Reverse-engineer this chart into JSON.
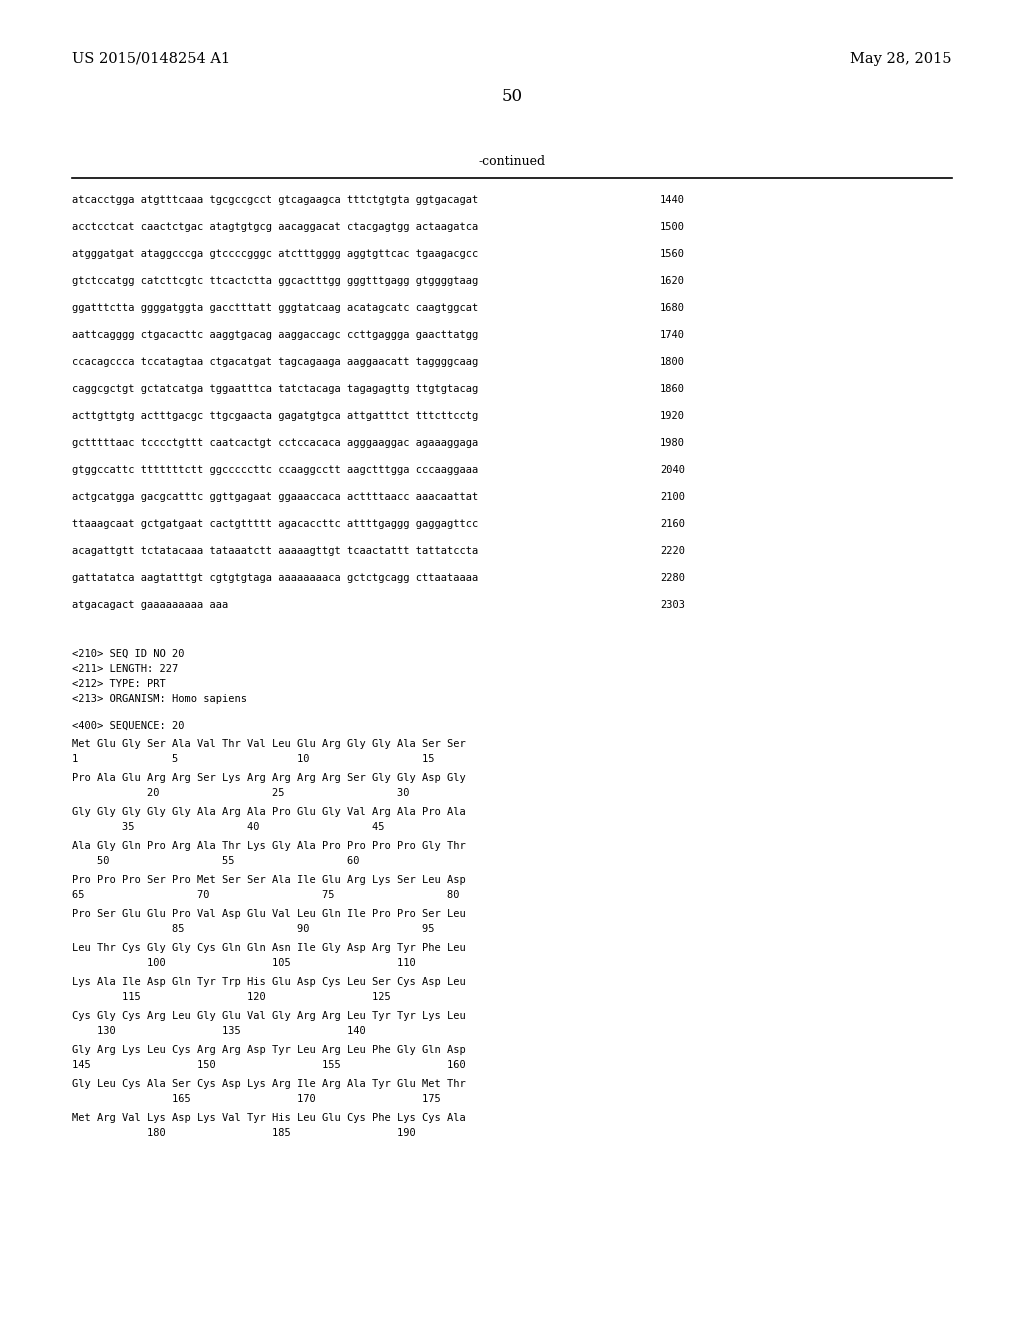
{
  "patent_left": "US 2015/0148254 A1",
  "patent_right": "May 28, 2015",
  "page_number": "50",
  "continued_label": "-continued",
  "background_color": "#ffffff",
  "text_color": "#000000",
  "sequence_lines": [
    [
      "atcacctgga atgtttcaaa tgcgccgcct gtcagaagca tttctgtgta ggtgacagat",
      "1440"
    ],
    [
      "acctcctcat caactctgac atagtgtgcg aacaggacat ctacgagtgg actaagatca",
      "1500"
    ],
    [
      "atgggatgat ataggcccga gtccccgggc atctttgggg aggtgttcac tgaagacgcc",
      "1560"
    ],
    [
      "gtctccatgg catcttcgtc ttcactctta ggcactttgg gggtttgagg gtggggtaag",
      "1620"
    ],
    [
      "ggatttctta ggggatggta gacctttatt gggtatcaag acatagcatc caagtggcat",
      "1680"
    ],
    [
      "aattcagggg ctgacacttc aaggtgacag aaggaccagc ccttgaggga gaacttatgg",
      "1740"
    ],
    [
      "ccacagccca tccatagtaa ctgacatgat tagcagaaga aaggaacatt taggggcaag",
      "1800"
    ],
    [
      "caggcgctgt gctatcatga tggaatttca tatctacaga tagagagttg ttgtgtacag",
      "1860"
    ],
    [
      "acttgttgtg actttgacgc ttgcgaacta gagatgtgca attgatttct tttcttcctg",
      "1920"
    ],
    [
      "gctttttaac tcccctgttt caatcactgt cctccacaca agggaaggac agaaaggaga",
      "1980"
    ],
    [
      "gtggccattc tttttttctt ggcccccttc ccaaggcctt aagctttgga cccaaggaaa",
      "2040"
    ],
    [
      "actgcatgga gacgcatttc ggttgagaat ggaaaccaca acttttaacc aaacaattat",
      "2100"
    ],
    [
      "ttaaagcaat gctgatgaat cactgttttt agacaccttc attttgaggg gaggagttcc",
      "2160"
    ],
    [
      "acagattgtt tctatacaaa tataaatctt aaaaagttgt tcaactattt tattatccta",
      "2220"
    ],
    [
      "gattatatca aagtatttgt cgtgtgtaga aaaaaaaaca gctctgcagg cttaataaaa",
      "2280"
    ],
    [
      "atgacagact gaaaaaaaaa aaa",
      "2303"
    ]
  ],
  "metadata_lines": [
    "<210> SEQ ID NO 20",
    "<211> LENGTH: 227",
    "<212> TYPE: PRT",
    "<213> ORGANISM: Homo sapiens"
  ],
  "sequence_label": "<400> SEQUENCE: 20",
  "protein_lines": [
    {
      "seq": "Met Glu Gly Ser Ala Val Thr Val Leu Glu Arg Gly Gly Ala Ser Ser",
      "nums": "1               5                   10                  15"
    },
    {
      "seq": "Pro Ala Glu Arg Arg Ser Lys Arg Arg Arg Arg Ser Gly Gly Asp Gly",
      "nums": "            20                  25                  30"
    },
    {
      "seq": "Gly Gly Gly Gly Gly Ala Arg Ala Pro Glu Gly Val Arg Ala Pro Ala",
      "nums": "        35                  40                  45"
    },
    {
      "seq": "Ala Gly Gln Pro Arg Ala Thr Lys Gly Ala Pro Pro Pro Pro Gly Thr",
      "nums": "    50                  55                  60"
    },
    {
      "seq": "Pro Pro Pro Ser Pro Met Ser Ser Ala Ile Glu Arg Lys Ser Leu Asp",
      "nums": "65                  70                  75                  80"
    },
    {
      "seq": "Pro Ser Glu Glu Pro Val Asp Glu Val Leu Gln Ile Pro Pro Ser Leu",
      "nums": "                85                  90                  95"
    },
    {
      "seq": "Leu Thr Cys Gly Gly Cys Gln Gln Asn Ile Gly Asp Arg Tyr Phe Leu",
      "nums": "            100                 105                 110"
    },
    {
      "seq": "Lys Ala Ile Asp Gln Tyr Trp His Glu Asp Cys Leu Ser Cys Asp Leu",
      "nums": "        115                 120                 125"
    },
    {
      "seq": "Cys Gly Cys Arg Leu Gly Glu Val Gly Arg Arg Leu Tyr Tyr Lys Leu",
      "nums": "    130                 135                 140"
    },
    {
      "seq": "Gly Arg Lys Leu Cys Arg Arg Asp Tyr Leu Arg Leu Phe Gly Gln Asp",
      "nums": "145                 150                 155                 160"
    },
    {
      "seq": "Gly Leu Cys Ala Ser Cys Asp Lys Arg Ile Arg Ala Tyr Glu Met Thr",
      "nums": "                165                 170                 175"
    },
    {
      "seq": "Met Arg Val Lys Asp Lys Val Tyr His Leu Glu Cys Phe Lys Cys Ala",
      "nums": "            180                 185                 190"
    }
  ]
}
